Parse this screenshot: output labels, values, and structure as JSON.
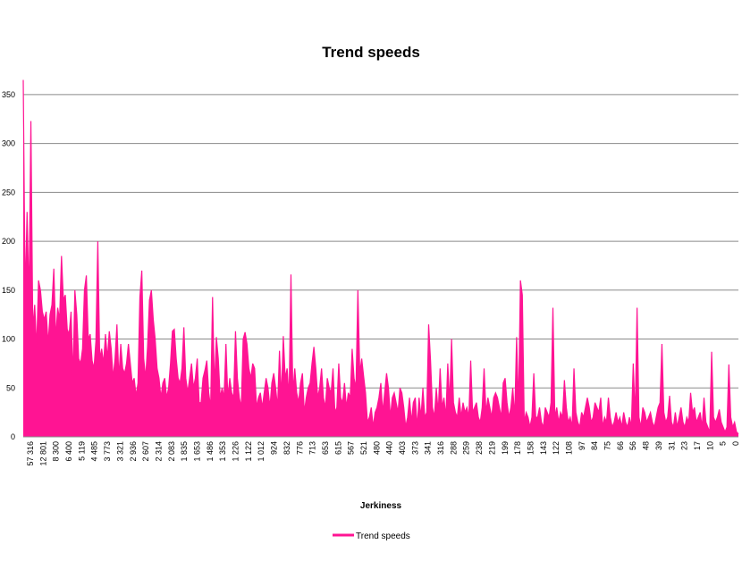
{
  "chart_data": {
    "type": "area",
    "title": "Trend speeds",
    "xlabel": "Jerkiness",
    "ylabel": "",
    "ylim": [
      0,
      370
    ],
    "yticks": [
      0,
      50,
      100,
      150,
      200,
      250,
      300,
      350
    ],
    "grid": true,
    "legend_position": "bottom",
    "color": "#ff1493",
    "x_tick_labels": [
      "57 316",
      "12 801",
      "8 300",
      "6 400",
      "5 119",
      "4 485",
      "3 773",
      "3 321",
      "2 936",
      "2 607",
      "2 314",
      "2 083",
      "1 835",
      "1 653",
      "1 486",
      "1 353",
      "1 226",
      "1 122",
      "1 012",
      "924",
      "832",
      "776",
      "713",
      "653",
      "615",
      "567",
      "521",
      "480",
      "440",
      "403",
      "373",
      "341",
      "316",
      "288",
      "259",
      "238",
      "219",
      "199",
      "178",
      "158",
      "143",
      "122",
      "108",
      "97",
      "84",
      "75",
      "66",
      "56",
      "48",
      "39",
      "31",
      "23",
      "17",
      "10",
      "5",
      "0"
    ],
    "series": [
      {
        "name": "Trend speeds",
        "values": [
          365,
          143,
          230,
          140,
          323,
          110,
          135,
          90,
          160,
          150,
          128,
          120,
          128,
          95,
          125,
          135,
          172,
          100,
          132,
          120,
          185,
          140,
          145,
          110,
          105,
          128,
          60,
          150,
          125,
          80,
          75,
          90,
          150,
          165,
          100,
          105,
          78,
          70,
          98,
          200,
          80,
          90,
          75,
          105,
          80,
          108,
          90,
          60,
          80,
          115,
          60,
          95,
          70,
          65,
          75,
          95,
          75,
          55,
          60,
          42,
          55,
          143,
          170,
          80,
          60,
          92,
          140,
          150,
          120,
          100,
          70,
          60,
          40,
          55,
          60,
          40,
          50,
          75,
          108,
          110,
          80,
          60,
          55,
          70,
          112,
          60,
          45,
          60,
          75,
          50,
          60,
          80,
          35,
          35,
          60,
          68,
          78,
          45,
          30,
          143,
          50,
          102,
          80,
          40,
          50,
          40,
          95,
          40,
          60,
          45,
          40,
          108,
          60,
          40,
          30,
          100,
          107,
          95,
          70,
          60,
          75,
          70,
          30,
          40,
          45,
          30,
          45,
          60,
          50,
          30,
          55,
          65,
          50,
          30,
          88,
          40,
          103,
          60,
          70,
          40,
          166,
          45,
          70,
          45,
          35,
          55,
          65,
          25,
          40,
          50,
          55,
          75,
          92,
          70,
          40,
          50,
          70,
          40,
          30,
          60,
          50,
          45,
          70,
          25,
          30,
          75,
          40,
          35,
          55,
          30,
          45,
          40,
          90,
          60,
          50,
          150,
          65,
          80,
          62,
          45,
          15,
          20,
          30,
          10,
          25,
          30,
          40,
          55,
          25,
          45,
          65,
          50,
          20,
          40,
          45,
          35,
          25,
          50,
          45,
          30,
          10,
          20,
          40,
          15,
          35,
          40,
          10,
          40,
          20,
          50,
          20,
          25,
          115,
          78,
          30,
          20,
          50,
          25,
          70,
          30,
          40,
          20,
          75,
          35,
          100,
          35,
          25,
          20,
          40,
          20,
          35,
          25,
          30,
          20,
          78,
          25,
          30,
          35,
          20,
          15,
          30,
          70,
          25,
          40,
          30,
          20,
          40,
          45,
          40,
          30,
          20,
          55,
          60,
          35,
          20,
          30,
          50,
          20,
          102,
          30,
          160,
          145,
          15,
          25,
          20,
          10,
          20,
          65,
          20,
          20,
          30,
          15,
          10,
          30,
          25,
          20,
          35,
          132,
          20,
          30,
          15,
          25,
          20,
          58,
          30,
          15,
          20,
          10,
          70,
          25,
          15,
          10,
          25,
          20,
          30,
          40,
          30,
          15,
          20,
          35,
          30,
          25,
          40,
          10,
          20,
          15,
          40,
          20,
          10,
          15,
          25,
          15,
          20,
          10,
          25,
          15,
          10,
          20,
          10,
          75,
          20,
          132,
          20,
          10,
          30,
          25,
          15,
          20,
          25,
          15,
          10,
          20,
          30,
          35,
          95,
          25,
          15,
          20,
          42,
          15,
          10,
          25,
          10,
          20,
          30,
          15,
          10,
          20,
          15,
          45,
          25,
          30,
          15,
          20,
          25,
          10,
          40,
          15,
          10,
          5,
          87,
          20,
          15,
          20,
          28,
          15,
          10,
          5,
          10,
          74,
          20,
          10,
          15,
          5,
          3
        ]
      }
    ]
  }
}
